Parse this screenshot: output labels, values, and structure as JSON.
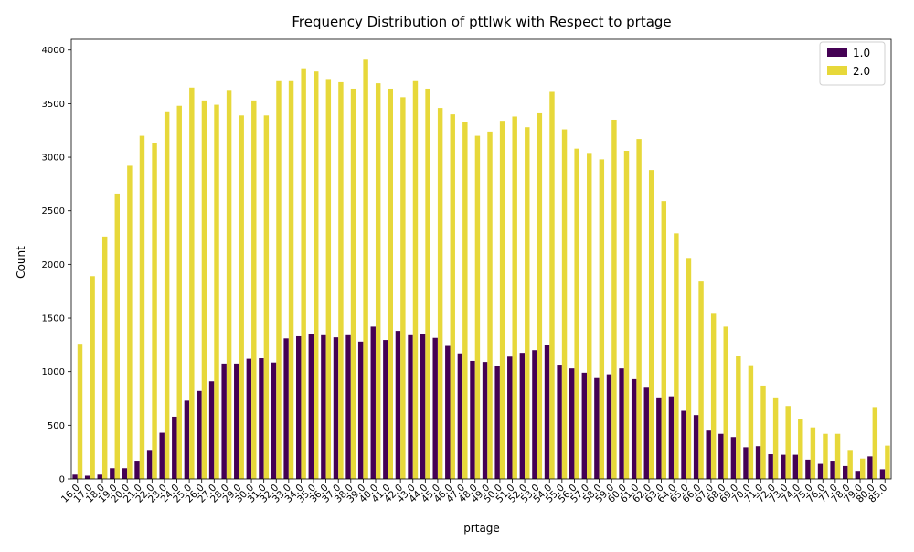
{
  "chart_data": {
    "type": "bar",
    "title": "Frequency Distribution of pttlwk with Respect to prtage",
    "xlabel": "prtage",
    "ylabel": "Count",
    "ylim": [
      0,
      4100
    ],
    "yticks": [
      0,
      500,
      1000,
      1500,
      2000,
      2500,
      3000,
      3500,
      4000
    ],
    "grid": false,
    "legend_position": "top-right",
    "categories": [
      "16.0",
      "17.0",
      "18.0",
      "19.0",
      "20.0",
      "21.0",
      "22.0",
      "23.0",
      "24.0",
      "25.0",
      "26.0",
      "27.0",
      "28.0",
      "29.0",
      "30.0",
      "31.0",
      "32.0",
      "33.0",
      "34.0",
      "35.0",
      "36.0",
      "37.0",
      "38.0",
      "39.0",
      "40.0",
      "41.0",
      "42.0",
      "43.0",
      "44.0",
      "45.0",
      "46.0",
      "47.0",
      "48.0",
      "49.0",
      "50.0",
      "51.0",
      "52.0",
      "53.0",
      "54.0",
      "55.0",
      "56.0",
      "57.0",
      "58.0",
      "59.0",
      "60.0",
      "61.0",
      "62.0",
      "63.0",
      "64.0",
      "65.0",
      "66.0",
      "67.0",
      "68.0",
      "69.0",
      "70.0",
      "71.0",
      "72.0",
      "73.0",
      "74.0",
      "75.0",
      "76.0",
      "77.0",
      "78.0",
      "79.0",
      "80.0",
      "85.0"
    ],
    "series": [
      {
        "name": "1.0",
        "color": "#440154",
        "values": [
          40,
          30,
          40,
          100,
          100,
          170,
          270,
          430,
          580,
          730,
          820,
          910,
          1075,
          1075,
          1120,
          1125,
          1085,
          1310,
          1330,
          1355,
          1340,
          1320,
          1340,
          1280,
          1420,
          1295,
          1380,
          1340,
          1355,
          1315,
          1240,
          1170,
          1100,
          1090,
          1055,
          1140,
          1175,
          1200,
          1245,
          1065,
          1030,
          990,
          940,
          975,
          1030,
          930,
          850,
          760,
          770,
          635,
          595,
          450,
          420,
          390,
          295,
          305,
          230,
          225,
          225,
          180,
          140,
          170,
          120,
          75,
          210,
          90
        ]
      },
      {
        "name": "2.0",
        "color": "#E7D83A",
        "values": [
          1260,
          1890,
          2260,
          2660,
          2920,
          3200,
          3130,
          3420,
          3480,
          3650,
          3530,
          3490,
          3620,
          3390,
          3530,
          3390,
          3710,
          3710,
          3830,
          3800,
          3730,
          3700,
          3640,
          3910,
          3690,
          3640,
          3560,
          3710,
          3640,
          3460,
          3400,
          3330,
          3200,
          3240,
          3340,
          3380,
          3280,
          3410,
          3610,
          3260,
          3080,
          3040,
          2980,
          3350,
          3060,
          3170,
          2880,
          2590,
          2290,
          2060,
          1840,
          1540,
          1420,
          1150,
          1060,
          870,
          760,
          680,
          560,
          480,
          420,
          420,
          270,
          190,
          670,
          310
        ]
      }
    ]
  }
}
